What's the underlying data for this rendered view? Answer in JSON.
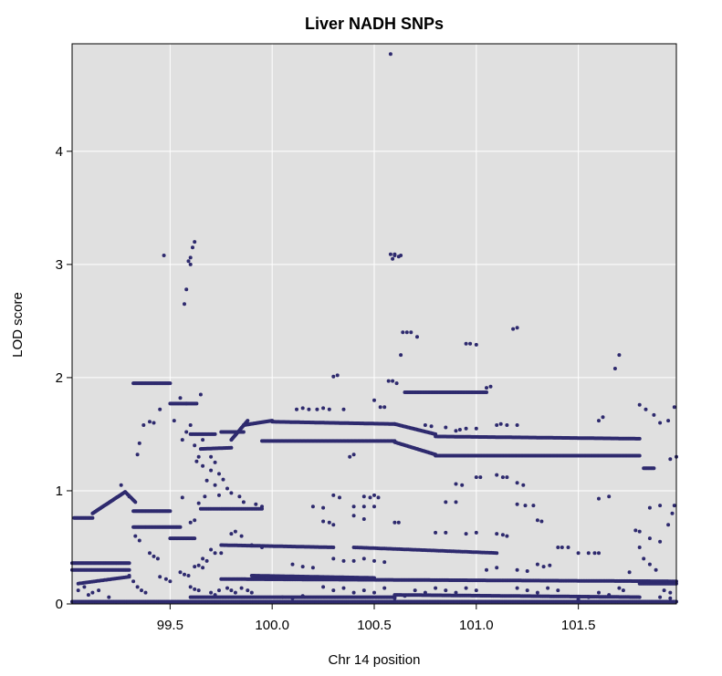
{
  "chart_data": {
    "type": "scatter",
    "title": "Liver NADH SNPs",
    "xlabel": "Chr 14 position",
    "ylabel": "LOD score",
    "xlim": [
      99.02,
      101.98
    ],
    "ylim": [
      0,
      4.95
    ],
    "x_ticks": [
      99.5,
      100.0,
      100.5,
      101.0,
      101.5
    ],
    "x_tick_labels": [
      "99.5",
      "100.0",
      "100.5",
      "101.0",
      "101.5"
    ],
    "y_ticks": [
      0,
      1,
      2,
      3,
      4
    ],
    "y_tick_labels": [
      "0",
      "1",
      "2",
      "3",
      "4"
    ],
    "grid": true,
    "legend": "none",
    "colors": {
      "points": "#2E2A6E",
      "panel": "#E0E0E0",
      "grid": "#FFFFFF"
    },
    "bands": [
      {
        "x0": 99.02,
        "x1": 99.3,
        "y0": 0.36,
        "y1": 0.36,
        "n": 60
      },
      {
        "x0": 99.02,
        "x1": 99.3,
        "y0": 0.3,
        "y1": 0.3,
        "n": 55
      },
      {
        "x0": 99.03,
        "x1": 99.12,
        "y0": 0.76,
        "y1": 0.76,
        "n": 20
      },
      {
        "x0": 99.12,
        "x1": 99.28,
        "y0": 0.8,
        "y1": 0.99,
        "n": 35
      },
      {
        "x0": 99.28,
        "x1": 99.33,
        "y0": 0.99,
        "y1": 0.9,
        "n": 10
      },
      {
        "x0": 99.05,
        "x1": 99.3,
        "y0": 0.18,
        "y1": 0.24,
        "n": 30
      },
      {
        "x0": 99.32,
        "x1": 99.5,
        "y0": 1.95,
        "y1": 1.95,
        "n": 40
      },
      {
        "x0": 99.32,
        "x1": 99.5,
        "y0": 0.82,
        "y1": 0.82,
        "n": 40
      },
      {
        "x0": 99.32,
        "x1": 99.55,
        "y0": 0.68,
        "y1": 0.68,
        "n": 45
      },
      {
        "x0": 99.5,
        "x1": 99.63,
        "y0": 1.77,
        "y1": 1.77,
        "n": 25
      },
      {
        "x0": 99.5,
        "x1": 99.62,
        "y0": 0.58,
        "y1": 0.58,
        "n": 20
      },
      {
        "x0": 99.6,
        "x1": 99.72,
        "y0": 1.5,
        "y1": 1.5,
        "n": 20
      },
      {
        "x0": 99.65,
        "x1": 99.8,
        "y0": 1.37,
        "y1": 1.38,
        "n": 25
      },
      {
        "x0": 99.8,
        "x1": 99.88,
        "y0": 1.45,
        "y1": 1.62,
        "n": 20
      },
      {
        "x0": 99.75,
        "x1": 99.86,
        "y0": 1.52,
        "y1": 1.52,
        "n": 20
      },
      {
        "x0": 99.86,
        "x1": 100.0,
        "y0": 1.58,
        "y1": 1.62,
        "n": 30
      },
      {
        "x0": 100.0,
        "x1": 100.6,
        "y0": 1.61,
        "y1": 1.59,
        "n": 110
      },
      {
        "x0": 99.95,
        "x1": 100.6,
        "y0": 1.44,
        "y1": 1.44,
        "n": 110
      },
      {
        "x0": 100.6,
        "x1": 100.8,
        "y0": 1.59,
        "y1": 1.5,
        "n": 40
      },
      {
        "x0": 100.6,
        "x1": 100.8,
        "y0": 1.43,
        "y1": 1.32,
        "n": 40
      },
      {
        "x0": 100.8,
        "x1": 101.8,
        "y0": 1.48,
        "y1": 1.46,
        "n": 160
      },
      {
        "x0": 100.8,
        "x1": 101.8,
        "y0": 1.31,
        "y1": 1.31,
        "n": 160
      },
      {
        "x0": 101.82,
        "x1": 101.87,
        "y0": 1.2,
        "y1": 1.2,
        "n": 10
      },
      {
        "x0": 100.65,
        "x1": 101.05,
        "y0": 1.87,
        "y1": 1.87,
        "n": 60
      },
      {
        "x0": 99.65,
        "x1": 99.95,
        "y0": 0.84,
        "y1": 0.84,
        "n": 40
      },
      {
        "x0": 99.75,
        "x1": 100.3,
        "y0": 0.52,
        "y1": 0.5,
        "n": 80
      },
      {
        "x0": 100.4,
        "x1": 101.1,
        "y0": 0.5,
        "y1": 0.45,
        "n": 80
      },
      {
        "x0": 99.9,
        "x1": 100.5,
        "y0": 0.25,
        "y1": 0.23,
        "n": 100
      },
      {
        "x0": 99.75,
        "x1": 101.98,
        "y0": 0.22,
        "y1": 0.2,
        "n": 320
      },
      {
        "x0": 101.8,
        "x1": 101.98,
        "y0": 0.18,
        "y1": 0.18,
        "n": 30
      },
      {
        "x0": 99.02,
        "x1": 101.98,
        "y0": 0.02,
        "y1": 0.02,
        "n": 380
      },
      {
        "x0": 99.6,
        "x1": 100.6,
        "y0": 0.06,
        "y1": 0.06,
        "n": 150
      },
      {
        "x0": 100.6,
        "x1": 101.8,
        "y0": 0.08,
        "y1": 0.06,
        "n": 160
      }
    ],
    "points": [
      [
        100.58,
        4.86
      ],
      [
        99.47,
        3.08
      ],
      [
        99.59,
        3.03
      ],
      [
        99.6,
        3.06
      ],
      [
        99.61,
        3.15
      ],
      [
        99.62,
        3.2
      ],
      [
        99.58,
        2.78
      ],
      [
        99.57,
        2.65
      ],
      [
        99.6,
        3.0
      ],
      [
        100.58,
        3.09
      ],
      [
        100.6,
        3.08
      ],
      [
        100.62,
        3.07
      ],
      [
        100.59,
        3.05
      ],
      [
        100.6,
        3.09
      ],
      [
        100.63,
        3.08
      ],
      [
        100.64,
        2.4
      ],
      [
        100.66,
        2.4
      ],
      [
        100.68,
        2.4
      ],
      [
        100.71,
        2.36
      ],
      [
        100.63,
        2.2
      ],
      [
        100.95,
        2.3
      ],
      [
        100.97,
        2.3
      ],
      [
        101.0,
        2.29
      ],
      [
        101.2,
        2.44
      ],
      [
        101.18,
        2.43
      ],
      [
        101.7,
        2.2
      ],
      [
        101.68,
        2.08
      ],
      [
        100.3,
        2.01
      ],
      [
        100.32,
        2.02
      ],
      [
        100.57,
        1.97
      ],
      [
        100.59,
        1.97
      ],
      [
        100.61,
        1.95
      ],
      [
        100.53,
        1.74
      ],
      [
        100.55,
        1.74
      ],
      [
        100.5,
        1.8
      ],
      [
        100.35,
        1.72
      ],
      [
        101.8,
        1.76
      ],
      [
        101.83,
        1.72
      ],
      [
        101.87,
        1.67
      ],
      [
        101.9,
        1.6
      ],
      [
        101.94,
        1.62
      ],
      [
        101.97,
        1.74
      ],
      [
        101.6,
        1.62
      ],
      [
        101.62,
        1.65
      ],
      [
        101.05,
        1.91
      ],
      [
        101.07,
        1.92
      ],
      [
        99.65,
        1.85
      ],
      [
        99.55,
        1.82
      ],
      [
        99.58,
        1.77
      ],
      [
        99.52,
        1.62
      ],
      [
        99.35,
        1.42
      ],
      [
        99.34,
        1.32
      ],
      [
        99.37,
        1.58
      ],
      [
        99.4,
        1.61
      ],
      [
        99.42,
        1.6
      ],
      [
        99.45,
        1.72
      ],
      [
        99.63,
        1.26
      ],
      [
        99.66,
        1.22
      ],
      [
        99.7,
        1.18
      ],
      [
        99.68,
        1.09
      ],
      [
        99.72,
        1.05
      ],
      [
        99.74,
        0.96
      ],
      [
        99.67,
        0.95
      ],
      [
        99.56,
        0.94
      ],
      [
        99.64,
        0.89
      ],
      [
        99.62,
        0.74
      ],
      [
        99.6,
        0.72
      ],
      [
        100.45,
        0.95
      ],
      [
        100.48,
        0.94
      ],
      [
        100.5,
        0.96
      ],
      [
        100.52,
        0.94
      ],
      [
        100.3,
        0.96
      ],
      [
        100.33,
        0.94
      ],
      [
        101.1,
        1.14
      ],
      [
        101.13,
        1.12
      ],
      [
        101.15,
        1.12
      ],
      [
        101.2,
        1.07
      ],
      [
        101.23,
        1.05
      ],
      [
        100.9,
        1.06
      ],
      [
        100.93,
        1.05
      ],
      [
        101.2,
        0.88
      ],
      [
        101.24,
        0.87
      ],
      [
        101.28,
        0.87
      ],
      [
        100.85,
        0.9
      ],
      [
        100.9,
        0.9
      ],
      [
        101.85,
        0.85
      ],
      [
        101.9,
        0.87
      ],
      [
        101.97,
        0.87
      ],
      [
        101.6,
        0.93
      ],
      [
        101.65,
        0.95
      ],
      [
        101.95,
        1.28
      ],
      [
        101.98,
        1.3
      ],
      [
        100.2,
        0.86
      ],
      [
        100.25,
        0.85
      ],
      [
        100.4,
        0.86
      ],
      [
        100.45,
        0.86
      ],
      [
        100.5,
        0.86
      ],
      [
        100.4,
        0.78
      ],
      [
        100.45,
        0.75
      ],
      [
        100.6,
        0.72
      ],
      [
        100.62,
        0.72
      ],
      [
        100.25,
        0.73
      ],
      [
        100.28,
        0.72
      ],
      [
        100.3,
        0.7
      ],
      [
        101.1,
        0.62
      ],
      [
        101.13,
        0.61
      ],
      [
        101.15,
        0.6
      ],
      [
        101.4,
        0.5
      ],
      [
        101.42,
        0.5
      ],
      [
        101.45,
        0.5
      ],
      [
        101.5,
        0.45
      ],
      [
        101.55,
        0.45
      ],
      [
        101.58,
        0.45
      ],
      [
        101.6,
        0.45
      ],
      [
        101.0,
        0.63
      ],
      [
        100.95,
        0.62
      ],
      [
        100.8,
        0.63
      ],
      [
        100.85,
        0.63
      ],
      [
        101.3,
        0.74
      ],
      [
        101.32,
        0.73
      ],
      [
        101.78,
        0.65
      ],
      [
        101.8,
        0.64
      ],
      [
        101.85,
        0.58
      ],
      [
        101.9,
        0.55
      ],
      [
        101.94,
        0.7
      ],
      [
        101.96,
        0.8
      ],
      [
        101.8,
        0.5
      ],
      [
        101.82,
        0.4
      ],
      [
        101.85,
        0.35
      ],
      [
        101.88,
        0.3
      ],
      [
        101.92,
        0.12
      ],
      [
        101.95,
        0.1
      ],
      [
        101.75,
        0.28
      ],
      [
        101.7,
        0.14
      ],
      [
        101.72,
        0.12
      ],
      [
        101.3,
        0.35
      ],
      [
        101.33,
        0.33
      ],
      [
        101.36,
        0.34
      ],
      [
        101.05,
        0.3
      ],
      [
        101.1,
        0.32
      ],
      [
        101.2,
        0.3
      ],
      [
        101.25,
        0.29
      ],
      [
        100.3,
        0.4
      ],
      [
        100.35,
        0.38
      ],
      [
        100.4,
        0.38
      ],
      [
        100.45,
        0.4
      ],
      [
        100.5,
        0.38
      ],
      [
        100.55,
        0.37
      ],
      [
        100.1,
        0.35
      ],
      [
        100.15,
        0.33
      ],
      [
        100.2,
        0.32
      ],
      [
        99.8,
        0.62
      ],
      [
        99.82,
        0.64
      ],
      [
        99.85,
        0.6
      ],
      [
        99.9,
        0.52
      ],
      [
        99.95,
        0.5
      ],
      [
        99.7,
        0.48
      ],
      [
        99.72,
        0.45
      ],
      [
        99.75,
        0.45
      ],
      [
        99.66,
        0.4
      ],
      [
        99.68,
        0.38
      ],
      [
        99.62,
        0.33
      ],
      [
        99.64,
        0.34
      ],
      [
        99.66,
        0.32
      ],
      [
        99.55,
        0.28
      ],
      [
        99.57,
        0.26
      ],
      [
        99.59,
        0.25
      ],
      [
        99.45,
        0.24
      ],
      [
        99.48,
        0.22
      ],
      [
        99.5,
        0.2
      ],
      [
        99.4,
        0.45
      ],
      [
        99.42,
        0.42
      ],
      [
        99.44,
        0.4
      ],
      [
        99.35,
        0.56
      ],
      [
        99.33,
        0.6
      ],
      [
        99.3,
        0.25
      ],
      [
        99.32,
        0.2
      ],
      [
        99.34,
        0.15
      ],
      [
        99.36,
        0.12
      ],
      [
        99.38,
        0.1
      ],
      [
        99.1,
        0.08
      ],
      [
        99.12,
        0.1
      ],
      [
        99.15,
        0.12
      ],
      [
        99.2,
        0.06
      ],
      [
        99.05,
        0.12
      ],
      [
        99.08,
        0.15
      ],
      [
        99.6,
        0.15
      ],
      [
        99.62,
        0.13
      ],
      [
        99.64,
        0.12
      ],
      [
        99.7,
        0.1
      ],
      [
        99.72,
        0.08
      ],
      [
        99.74,
        0.12
      ],
      [
        99.78,
        0.14
      ],
      [
        99.8,
        0.12
      ],
      [
        99.82,
        0.1
      ],
      [
        99.85,
        0.14
      ],
      [
        99.88,
        0.12
      ],
      [
        99.9,
        0.1
      ],
      [
        100.25,
        0.15
      ],
      [
        100.3,
        0.12
      ],
      [
        100.35,
        0.14
      ],
      [
        100.4,
        0.1
      ],
      [
        100.45,
        0.12
      ],
      [
        100.5,
        0.1
      ],
      [
        100.55,
        0.14
      ],
      [
        100.7,
        0.12
      ],
      [
        100.75,
        0.1
      ],
      [
        100.8,
        0.14
      ],
      [
        100.85,
        0.12
      ],
      [
        100.9,
        0.1
      ],
      [
        100.95,
        0.14
      ],
      [
        101.0,
        0.12
      ],
      [
        101.2,
        0.14
      ],
      [
        101.25,
        0.12
      ],
      [
        101.3,
        0.1
      ],
      [
        101.35,
        0.14
      ],
      [
        101.4,
        0.12
      ],
      [
        101.6,
        0.1
      ],
      [
        101.65,
        0.08
      ],
      [
        101.9,
        0.06
      ],
      [
        101.95,
        0.05
      ],
      [
        100.05,
        0.06
      ],
      [
        100.1,
        0.05
      ],
      [
        100.15,
        0.07
      ],
      [
        100.6,
        0.05
      ],
      [
        100.65,
        0.07
      ],
      [
        101.5,
        0.04
      ],
      [
        101.55,
        0.06
      ],
      [
        99.26,
        1.05
      ],
      [
        99.3,
        0.95
      ],
      [
        99.56,
        1.45
      ],
      [
        99.58,
        1.52
      ],
      [
        99.6,
        1.58
      ],
      [
        99.62,
        1.4
      ],
      [
        99.64,
        1.3
      ],
      [
        99.66,
        1.45
      ],
      [
        99.7,
        1.3
      ],
      [
        99.72,
        1.25
      ],
      [
        99.74,
        1.15
      ],
      [
        99.76,
        1.1
      ],
      [
        99.78,
        1.02
      ],
      [
        99.8,
        0.98
      ],
      [
        99.84,
        0.95
      ],
      [
        99.86,
        0.9
      ],
      [
        99.92,
        0.88
      ],
      [
        99.95,
        0.86
      ],
      [
        100.12,
        1.72
      ],
      [
        100.15,
        1.73
      ],
      [
        100.18,
        1.72
      ],
      [
        100.22,
        1.72
      ],
      [
        100.25,
        1.73
      ],
      [
        100.28,
        1.72
      ],
      [
        100.38,
        1.3
      ],
      [
        100.4,
        1.32
      ],
      [
        100.9,
        1.53
      ],
      [
        100.92,
        1.54
      ],
      [
        100.95,
        1.55
      ],
      [
        101.0,
        1.55
      ],
      [
        101.1,
        1.58
      ],
      [
        101.12,
        1.59
      ],
      [
        101.15,
        1.58
      ],
      [
        101.2,
        1.58
      ],
      [
        100.75,
        1.58
      ],
      [
        100.78,
        1.57
      ],
      [
        100.85,
        1.56
      ],
      [
        101.0,
        1.12
      ],
      [
        101.02,
        1.12
      ]
    ]
  }
}
